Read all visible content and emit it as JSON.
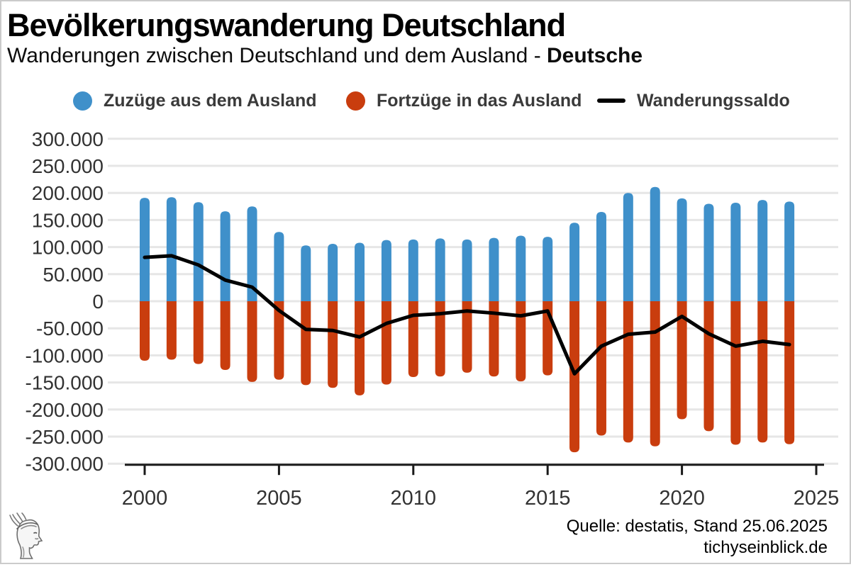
{
  "header": {
    "title": "Bevölkerungswanderung Deutschland",
    "subtitle": "Wanderungen zwischen Deutschland und dem Ausland - ",
    "subtitle_bold": "Deutsche"
  },
  "legend": {
    "items": [
      {
        "label": "Zuzüge aus dem Ausland",
        "color": "#3f90ca",
        "marker": "circle"
      },
      {
        "label": "Fortzüge in das Ausland",
        "color": "#c93d0e",
        "marker": "circle"
      },
      {
        "label": "Wanderungssaldo",
        "color": "#000000",
        "marker": "line"
      }
    ]
  },
  "footer": {
    "source_line": "Quelle: destatis, Stand 25.06.2025",
    "site_line": "tichyseinblick.de"
  },
  "logo": {
    "name": "tichys-einblick-coin-head-logo"
  },
  "colors": {
    "zuzuege": "#3f90ca",
    "fortzuege": "#c93d0e",
    "saldo": "#000000",
    "grid": "#e6e6e6",
    "axis": "#1a1a1a",
    "tick_text": "#323232"
  },
  "chart_data": {
    "type": "bar",
    "title": "Bevölkerungswanderung Deutschland",
    "xlabel": "",
    "ylabel": "",
    "x": [
      2000,
      2001,
      2002,
      2003,
      2004,
      2005,
      2006,
      2007,
      2008,
      2009,
      2010,
      2011,
      2012,
      2013,
      2014,
      2015,
      2016,
      2017,
      2018,
      2019,
      2020,
      2021,
      2022,
      2023,
      2024
    ],
    "series": [
      {
        "name": "Zuzüge aus dem Ausland",
        "type": "bar",
        "color": "#3f90ca",
        "values": [
          191000,
          192000,
          183000,
          166000,
          175000,
          128000,
          103000,
          106000,
          108000,
          113000,
          114000,
          116000,
          114000,
          117000,
          121000,
          119000,
          145000,
          165000,
          200000,
          211000,
          190000,
          180000,
          182000,
          187000,
          184000
        ]
      },
      {
        "name": "Fortzüge in das Ausland",
        "type": "bar",
        "color": "#c93d0e",
        "values": [
          -110000,
          -108000,
          -116000,
          -127000,
          -149000,
          -145000,
          -155000,
          -160000,
          -174000,
          -154000,
          -140000,
          -139000,
          -132000,
          -139000,
          -148000,
          -137000,
          -279000,
          -248000,
          -261000,
          -268000,
          -218000,
          -240000,
          -265000,
          -261000,
          -264000
        ]
      },
      {
        "name": "Wanderungssaldo",
        "type": "line",
        "color": "#000000",
        "values": [
          81000,
          84000,
          67000,
          39000,
          26000,
          -17000,
          -52000,
          -54000,
          -66000,
          -41000,
          -26000,
          -23000,
          -18000,
          -22000,
          -27000,
          -18000,
          -134000,
          -83000,
          -61000,
          -57000,
          -28000,
          -60000,
          -83000,
          -74000,
          -80000
        ]
      }
    ],
    "ylim": [
      -300000,
      300000
    ],
    "yticks": [
      300000,
      250000,
      200000,
      150000,
      100000,
      50000,
      0,
      -50000,
      -100000,
      -150000,
      -200000,
      -250000,
      -300000
    ],
    "ytick_labels": [
      "300.000",
      "250.000",
      "200.000",
      "150.000",
      "100.000",
      "50.000",
      "0",
      "-50.000",
      "-100.000",
      "-150.000",
      "-200.000",
      "-250.000",
      "-300.000"
    ],
    "xticks": [
      2000,
      2005,
      2010,
      2015,
      2020,
      2025
    ],
    "xtick_labels": [
      "2000",
      "2005",
      "2010",
      "2015",
      "2020",
      "2025"
    ],
    "grid": true,
    "legend_position": "top"
  }
}
